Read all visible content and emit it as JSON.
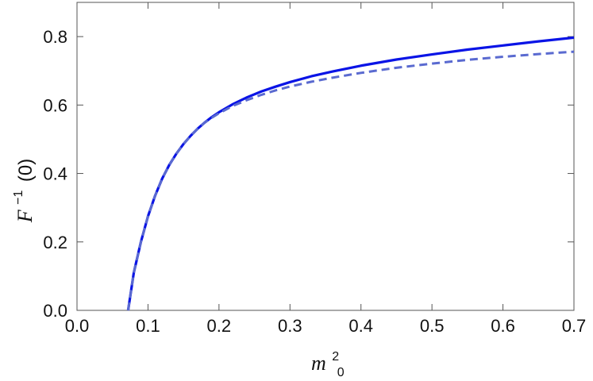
{
  "chart_data": {
    "type": "line",
    "xlabel": {
      "base": "m",
      "sup": "2",
      "sub": "0"
    },
    "ylabel": {
      "base": "F",
      "sup": "−1",
      "arg": "(0)"
    },
    "xlim": [
      0.0,
      0.7
    ],
    "ylim": [
      0.0,
      0.9
    ],
    "xticks": [
      "0.0",
      "0.1",
      "0.2",
      "0.3",
      "0.4",
      "0.5",
      "0.6",
      "0.7"
    ],
    "yticks": [
      "0.0",
      "0.2",
      "0.4",
      "0.6",
      "0.8"
    ],
    "grid": false,
    "series": [
      {
        "style": "solid",
        "color": "#0a14e6",
        "x": [
          0.072,
          0.08,
          0.09,
          0.1,
          0.11,
          0.12,
          0.13,
          0.14,
          0.15,
          0.16,
          0.17,
          0.18,
          0.19,
          0.2,
          0.22,
          0.24,
          0.26,
          0.28,
          0.3,
          0.33,
          0.36,
          0.4,
          0.45,
          0.5,
          0.55,
          0.6,
          0.65,
          0.7
        ],
        "y": [
          0.0,
          0.11,
          0.2,
          0.275,
          0.335,
          0.385,
          0.425,
          0.458,
          0.486,
          0.51,
          0.531,
          0.549,
          0.565,
          0.579,
          0.603,
          0.623,
          0.64,
          0.654,
          0.667,
          0.684,
          0.698,
          0.715,
          0.733,
          0.748,
          0.762,
          0.774,
          0.786,
          0.797
        ]
      },
      {
        "style": "dashed",
        "color": "#5a6ad0",
        "x": [
          0.072,
          0.08,
          0.09,
          0.1,
          0.11,
          0.12,
          0.13,
          0.14,
          0.15,
          0.16,
          0.17,
          0.18,
          0.19,
          0.2,
          0.22,
          0.24,
          0.26,
          0.28,
          0.3,
          0.33,
          0.36,
          0.4,
          0.45,
          0.5,
          0.55,
          0.6,
          0.65,
          0.7
        ],
        "y": [
          0.0,
          0.11,
          0.2,
          0.275,
          0.335,
          0.385,
          0.425,
          0.458,
          0.486,
          0.51,
          0.531,
          0.549,
          0.563,
          0.576,
          0.598,
          0.615,
          0.63,
          0.643,
          0.654,
          0.668,
          0.68,
          0.694,
          0.709,
          0.721,
          0.732,
          0.741,
          0.749,
          0.756
        ]
      }
    ]
  }
}
